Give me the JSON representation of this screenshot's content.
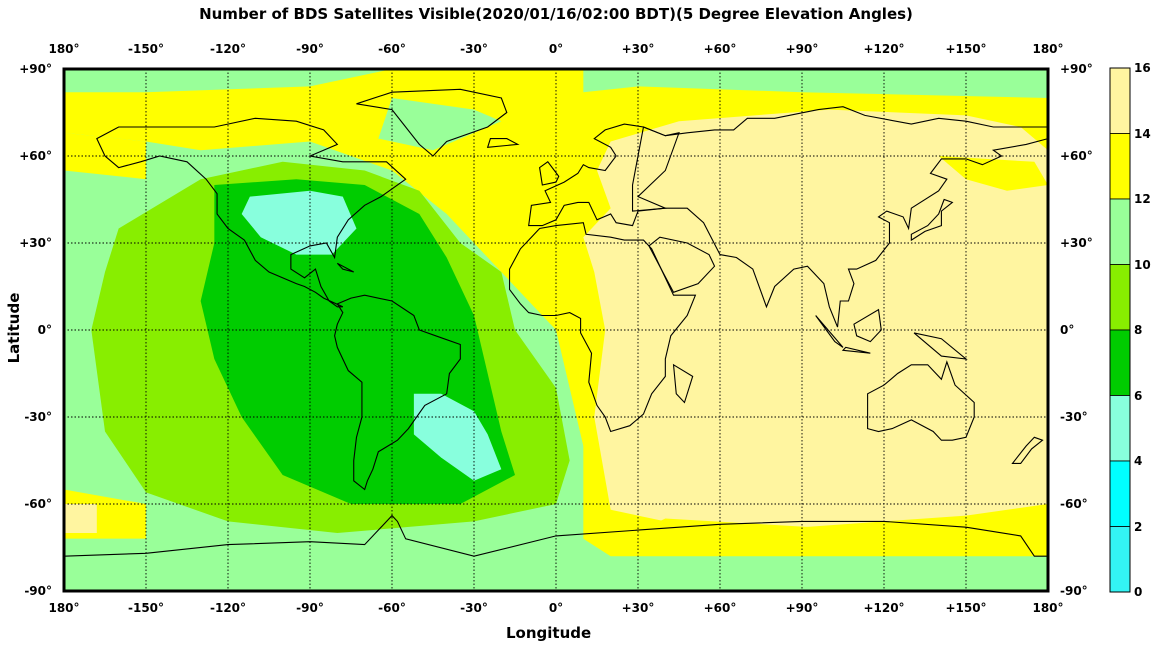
{
  "title": "Number of BDS Satellites Visible(2020/01/16/02:00 BDT)(5 Degree Elevation Angles)",
  "x_axis_label": "Longitude",
  "y_axis_label": "Latitude",
  "longitude_ticks": [
    "180°",
    "-150°",
    "-120°",
    "-90°",
    "-60°",
    "-30°",
    "0°",
    "+30°",
    "+60°",
    "+90°",
    "+120°",
    "+150°",
    "180°"
  ],
  "latitude_ticks": [
    "+90°",
    "+60°",
    "+30°",
    "0°",
    "-30°",
    "-60°",
    "-90°"
  ],
  "colorbar": {
    "labels": [
      "16",
      "14",
      "12",
      "10",
      "8",
      "6",
      "4",
      "2",
      "0"
    ],
    "colors": [
      "#fff5a0",
      "#ffff00",
      "#99ff99",
      "#88ee00",
      "#00cc00",
      "#88ffdd",
      "#00ffff",
      "#33f4f4",
      "#00e0e0"
    ]
  },
  "legend_ranges": [
    "14-16",
    "12-14",
    "10-12",
    "8-10",
    "6-8",
    "4-6",
    "2-4",
    "0-2"
  ],
  "map_style": {
    "projection": "equirectangular",
    "grid": true,
    "coastlines": true,
    "lon_range": [
      -180,
      180
    ],
    "lat_range": [
      -90,
      90
    ],
    "grid_step_deg": 30
  }
}
